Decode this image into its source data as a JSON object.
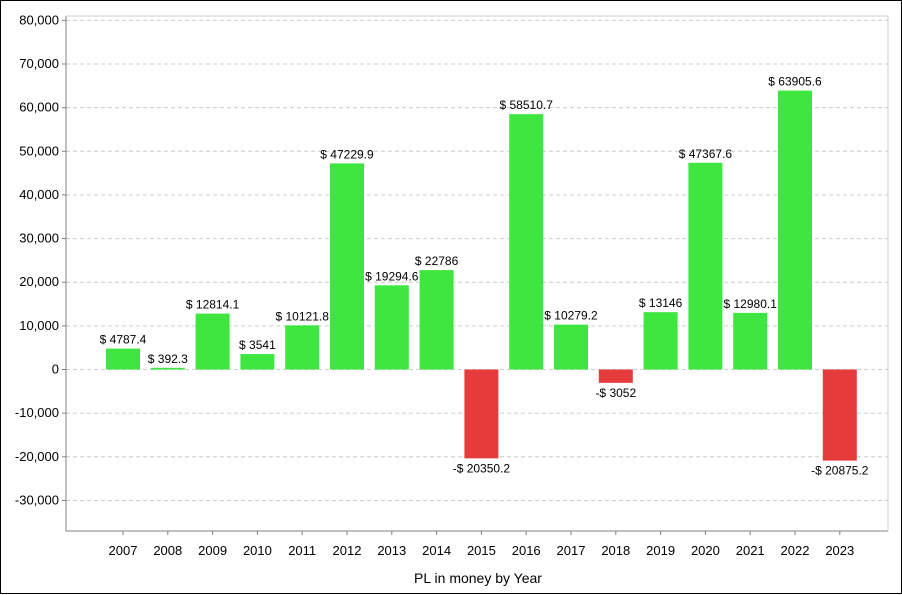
{
  "chart_data": {
    "type": "bar",
    "title": "",
    "xlabel": "PL in money by Year",
    "ylabel": "",
    "categories": [
      "2007",
      "2008",
      "2009",
      "2010",
      "2011",
      "2012",
      "2013",
      "2014",
      "2015",
      "2016",
      "2017",
      "2018",
      "2019",
      "2020",
      "2021",
      "2022",
      "2023"
    ],
    "values": [
      4787.4,
      392.3,
      12814.1,
      3541,
      10121.8,
      47229.9,
      19294.6,
      22786,
      -20350.2,
      58510.7,
      10279.2,
      -3052,
      13146,
      47367.6,
      12980.1,
      63905.6,
      -20875.2
    ],
    "data_labels": [
      "$ 4787.4",
      "$ 392.3",
      "$ 12814.1",
      "$ 3541",
      "$ 10121.8",
      "$ 47229.9",
      "$ 19294.6",
      "$ 22786",
      "-$ 20350.2",
      "$ 58510.7",
      "$ 10279.2",
      "-$ 3052",
      "$ 13146",
      "$ 47367.6",
      "$ 12980.1",
      "$ 63905.6",
      "-$ 20875.2"
    ],
    "y_ticks": [
      80000,
      70000,
      60000,
      50000,
      40000,
      30000,
      20000,
      10000,
      0,
      -10000,
      -20000,
      -30000
    ],
    "y_tick_labels": [
      "80,000",
      "70,000",
      "60,000",
      "50,000",
      "40,000",
      "30,000",
      "20,000",
      "10,000",
      "0",
      "-10,000",
      "-20,000",
      "-30,000"
    ],
    "ylim": [
      -37000,
      81000
    ],
    "grid": true,
    "legend": "none",
    "colors": {
      "positive": "#3fe63f",
      "negative": "#e63b3b",
      "grid": "#cccccc",
      "axis": "#808080"
    }
  }
}
